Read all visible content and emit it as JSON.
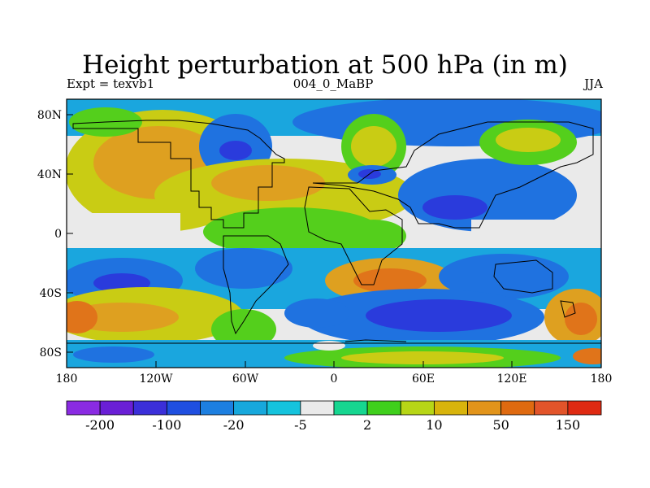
{
  "title": "Height perturbation at 500 hPa (in m)",
  "subtitle_left": "Expt = texvb1",
  "subtitle_center": "004_0_MaBP",
  "subtitle_right": "JJA",
  "lat_labels": [
    "80N",
    "40N",
    "0",
    "40S",
    "80S"
  ],
  "lon_labels": [
    "180",
    "120W",
    "60W",
    "0",
    "60E",
    "120E",
    "180"
  ],
  "colorbar": {
    "colors": [
      "#8a2be2",
      "#6a1fd6",
      "#3b2fd9",
      "#1f4fe0",
      "#1d7fe0",
      "#17a8dc",
      "#15c3dd",
      "#eaeaea",
      "#16d690",
      "#3fcf1c",
      "#b7d616",
      "#d8b40c",
      "#e2941a",
      "#df6a10",
      "#e2542a",
      "#df2a12"
    ],
    "labels": [
      "-200",
      "-100",
      "-20",
      "-5",
      "2",
      "10",
      "50",
      "150"
    ]
  },
  "legend_colors": {
    "strong_neg": "#2a3bdc",
    "mid_neg": "#1f72e0",
    "weak_neg": "#1aa6de",
    "neutral": "#eaeaea",
    "weak_pos": "#18d48a",
    "mid_pos": "#54cf1c",
    "pos_yellow": "#c9cc14",
    "pos_orange": "#dea020",
    "strong_pos": "#e0741a"
  }
}
